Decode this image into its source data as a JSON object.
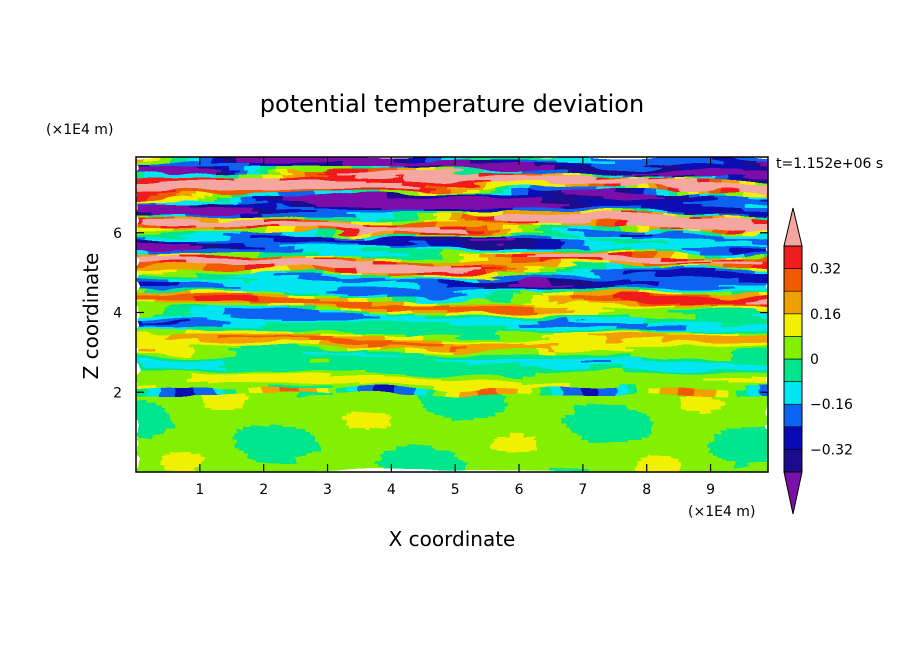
{
  "chart_data": {
    "type": "heatmap",
    "title": "potential temperature deviation",
    "xlabel": "X coordinate",
    "ylabel": "Z coordinate",
    "x_unit": "(×1E4 m)",
    "y_unit": "(×1E4 m)",
    "time_label": "t=1.152e+06 s",
    "xlim": [
      0,
      9.9
    ],
    "ylim": [
      0,
      7.9
    ],
    "x_ticks": [
      1,
      2,
      3,
      4,
      5,
      6,
      7,
      8,
      9
    ],
    "y_ticks": [
      2,
      4,
      6
    ],
    "colorbar": {
      "levels": [
        -0.4,
        -0.32,
        -0.24,
        -0.16,
        -0.08,
        0,
        0.08,
        0.16,
        0.24,
        0.32,
        0.4
      ],
      "labeled_levels": [
        0.32,
        0.16,
        0,
        -0.16,
        -0.32
      ],
      "labels": [
        "0.32",
        "0.16",
        "0",
        "−0.16",
        "−0.32"
      ],
      "over_color": "#f4a6a0",
      "under_color": "#7b10a8",
      "colors": [
        "#1c0a8c",
        "#0a0ab4",
        "#0a64f0",
        "#00e6f0",
        "#00e68c",
        "#82f000",
        "#f0f000",
        "#f0a000",
        "#f05a00",
        "#f01e1e"
      ]
    },
    "field_summary": "Lower layer (Z<2) mostly light green / green near 0; thin sharp band at Z≈2; striated alternating bands increasing in amplitude upward; top (Z>5) dominated by saturated pink (>0.4) and purple (<-0.4) layers."
  }
}
